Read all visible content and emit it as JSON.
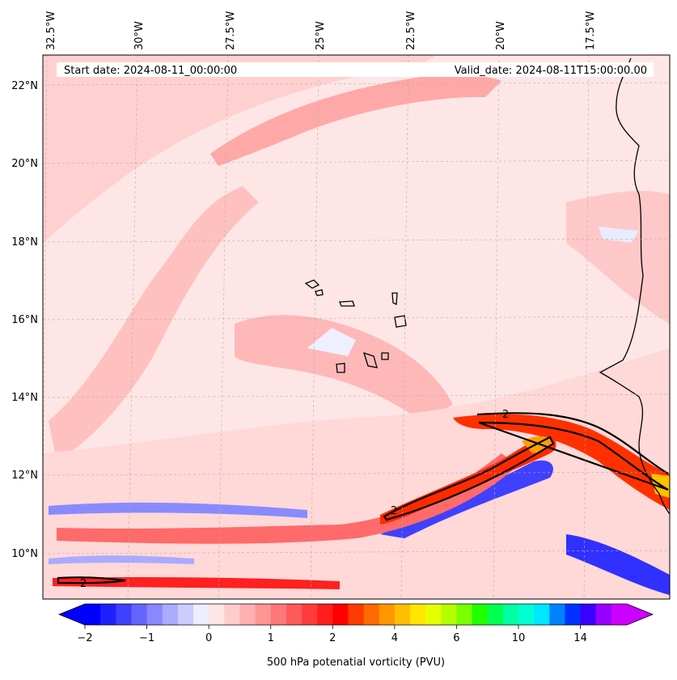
{
  "map": {
    "start_date": "Start date: 2024-08-11_00:00:00",
    "valid_date": "Valid_date: 2024-08-11T15:00:00.00",
    "lon_labels": [
      "32.5°W",
      "30°W",
      "27.5°W",
      "25°W",
      "22.5°W",
      "20°W",
      "17.5°W"
    ],
    "lat_labels": [
      "22°N",
      "20°N",
      "18°N",
      "16°N",
      "14°N",
      "12°N",
      "10°N"
    ],
    "contour_value": "2",
    "colors": {
      "light_pink": "#ffe0e0",
      "pink": "#ffbcbc",
      "salmon": "#ff9090",
      "red": "#ff2020",
      "orange": "#ff7a00",
      "blue": "#3030ff",
      "light_blue": "#e8ecff"
    }
  },
  "colorbar": {
    "label": "500 hPa potenatial vorticity (PVU)",
    "ticks": [
      "−2",
      "−1",
      "0",
      "1",
      "2",
      "4",
      "6",
      "10",
      "14"
    ],
    "colors": [
      "#0000ff",
      "#2020ff",
      "#4040ff",
      "#6464ff",
      "#8888ff",
      "#aaaaff",
      "#ccccff",
      "#eeeeff",
      "#ffe4e4",
      "#ffcccc",
      "#ffb0b0",
      "#ff9494",
      "#ff7878",
      "#ff5a5a",
      "#ff3c3c",
      "#ff1e1e",
      "#ff0000",
      "#ff3a00",
      "#ff6a00",
      "#ff9600",
      "#ffbe00",
      "#ffe600",
      "#e6ff00",
      "#b4ff00",
      "#78ff00",
      "#1eff00",
      "#00ff50",
      "#00ffa0",
      "#00ffd2",
      "#00e6ff",
      "#0082ff",
      "#0032ff",
      "#3c00ff",
      "#9600ff",
      "#cc00ff"
    ]
  }
}
